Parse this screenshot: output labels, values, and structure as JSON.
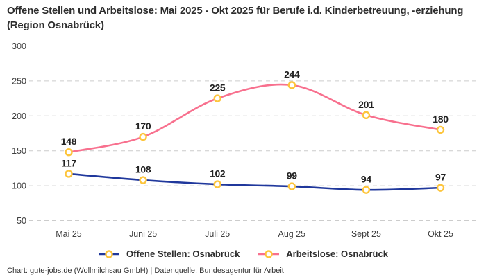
{
  "title": "Offene Stellen und Arbeitslose: Mai 2025 - Okt 2025 für Berufe i.d. Kinderbetreuung, -erziehung (Region Osnabrück)",
  "footer": "Chart: gute-jobs.de (Wollmilchsau GmbH) | Datenquelle: Bundesagentur für Arbeit",
  "colors": {
    "grid": "#cccccc",
    "marker_ring": "#fdc53c",
    "marker_fill": "#ffffff",
    "tick_text": "#3f3f3f",
    "label_text": "#222222",
    "title_text": "#2d2d2d"
  },
  "chart_data": {
    "type": "line",
    "title": "Offene Stellen und Arbeitslose: Mai 2025 - Okt 2025 für Berufe i.d. Kinderbetreuung, -erziehung (Region Osnabrück)",
    "categories": [
      "Mai 25",
      "Juni 25",
      "Juli 25",
      "Aug 25",
      "Sept 25",
      "Okt 25"
    ],
    "series": [
      {
        "id": "offene-stellen",
        "name": "Offene Stellen: Osnabrück",
        "color": "#20389c",
        "values": [
          117,
          108,
          102,
          99,
          94,
          97
        ]
      },
      {
        "id": "arbeitslose",
        "name": "Arbeitslose: Osnabrück",
        "color": "#f8708e",
        "values": [
          148,
          170,
          225,
          244,
          201,
          180
        ]
      }
    ],
    "yticks": [
      50,
      100,
      150,
      200,
      250,
      300
    ],
    "ylim": [
      50,
      300
    ],
    "xlabel": "",
    "ylabel": "",
    "grid": true,
    "grid_style": "dashed",
    "marker_style": "circle-open",
    "legend_position": "bottom"
  }
}
